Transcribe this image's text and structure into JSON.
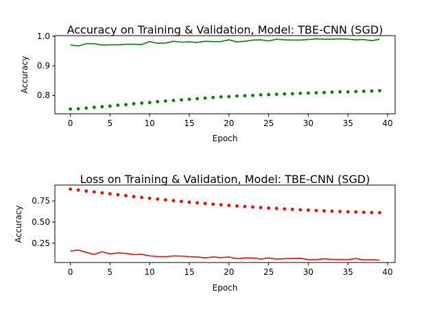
{
  "chart_data": [
    {
      "type": "line",
      "title": "Accuracy on Training & Validation, Model: TBE-CNN (SGD)",
      "xlabel": "Epoch",
      "ylabel": "Accuracy",
      "xlim": [
        -1.95,
        40.95
      ],
      "ylim": [
        0.738,
        1.002
      ],
      "xticks": [
        0,
        5,
        10,
        15,
        20,
        25,
        30,
        35,
        40
      ],
      "yticks": [
        0.8,
        0.9,
        1.0
      ],
      "ytick_labels": [
        "0.8",
        "0.9",
        "1.0"
      ],
      "grid": false,
      "x": [
        0,
        1,
        2,
        3,
        4,
        5,
        6,
        7,
        8,
        9,
        10,
        11,
        12,
        13,
        14,
        15,
        16,
        17,
        18,
        19,
        20,
        21,
        22,
        23,
        24,
        25,
        26,
        27,
        28,
        29,
        30,
        31,
        32,
        33,
        34,
        35,
        36,
        37,
        38,
        39
      ],
      "series": [
        {
          "style": "solid",
          "color": "#008000",
          "values": [
            0.971,
            0.967,
            0.975,
            0.975,
            0.97,
            0.971,
            0.971,
            0.973,
            0.973,
            0.972,
            0.982,
            0.976,
            0.977,
            0.983,
            0.98,
            0.981,
            0.979,
            0.983,
            0.982,
            0.982,
            0.988,
            0.981,
            0.983,
            0.987,
            0.988,
            0.984,
            0.99,
            0.988,
            0.987,
            0.987,
            0.989,
            0.991,
            0.99,
            0.99,
            0.991,
            0.99,
            0.988,
            0.989,
            0.985,
            0.99
          ]
        },
        {
          "style": "dotted",
          "color": "#008000",
          "values": [
            0.754,
            0.755,
            0.757,
            0.76,
            0.762,
            0.764,
            0.767,
            0.769,
            0.772,
            0.774,
            0.776,
            0.779,
            0.781,
            0.783,
            0.785,
            0.787,
            0.789,
            0.791,
            0.793,
            0.795,
            0.796,
            0.798,
            0.799,
            0.8,
            0.802,
            0.803,
            0.804,
            0.805,
            0.806,
            0.807,
            0.808,
            0.809,
            0.81,
            0.811,
            0.812,
            0.812,
            0.813,
            0.814,
            0.815,
            0.816
          ]
        }
      ]
    },
    {
      "type": "line",
      "title": "Loss on Training & Validation, Model: TBE-CNN (SGD)",
      "xlabel": "Epoch",
      "ylabel": "Accuracy",
      "xlim": [
        -1.95,
        40.95
      ],
      "ylim": [
        0.022,
        0.938
      ],
      "xticks": [
        0,
        5,
        10,
        15,
        20,
        25,
        30,
        35,
        40
      ],
      "yticks": [
        0.25,
        0.5,
        0.75
      ],
      "ytick_labels": [
        "0.25",
        "0.50",
        "0.75"
      ],
      "grid": false,
      "x": [
        0,
        1,
        2,
        3,
        4,
        5,
        6,
        7,
        8,
        9,
        10,
        11,
        12,
        13,
        14,
        15,
        16,
        17,
        18,
        19,
        20,
        21,
        22,
        23,
        24,
        25,
        26,
        27,
        28,
        29,
        30,
        31,
        32,
        33,
        34,
        35,
        36,
        37,
        38,
        39
      ],
      "series": [
        {
          "style": "solid",
          "color": "#ff0000",
          "values": [
            0.158,
            0.169,
            0.143,
            0.118,
            0.15,
            0.124,
            0.136,
            0.13,
            0.116,
            0.119,
            0.101,
            0.093,
            0.09,
            0.1,
            0.098,
            0.091,
            0.087,
            0.077,
            0.087,
            0.08,
            0.087,
            0.067,
            0.076,
            0.076,
            0.062,
            0.076,
            0.062,
            0.067,
            0.07,
            0.072,
            0.057,
            0.055,
            0.066,
            0.059,
            0.057,
            0.056,
            0.069,
            0.052,
            0.055,
            0.05
          ]
        },
        {
          "style": "dotted",
          "color": "#ff0000",
          "values": [
            0.89,
            0.88,
            0.868,
            0.857,
            0.846,
            0.835,
            0.824,
            0.813,
            0.802,
            0.792,
            0.782,
            0.772,
            0.763,
            0.754,
            0.745,
            0.736,
            0.728,
            0.72,
            0.712,
            0.705,
            0.698,
            0.691,
            0.684,
            0.678,
            0.672,
            0.666,
            0.661,
            0.656,
            0.651,
            0.646,
            0.642,
            0.637,
            0.633,
            0.629,
            0.625,
            0.622,
            0.619,
            0.616,
            0.613,
            0.611
          ]
        }
      ]
    }
  ]
}
